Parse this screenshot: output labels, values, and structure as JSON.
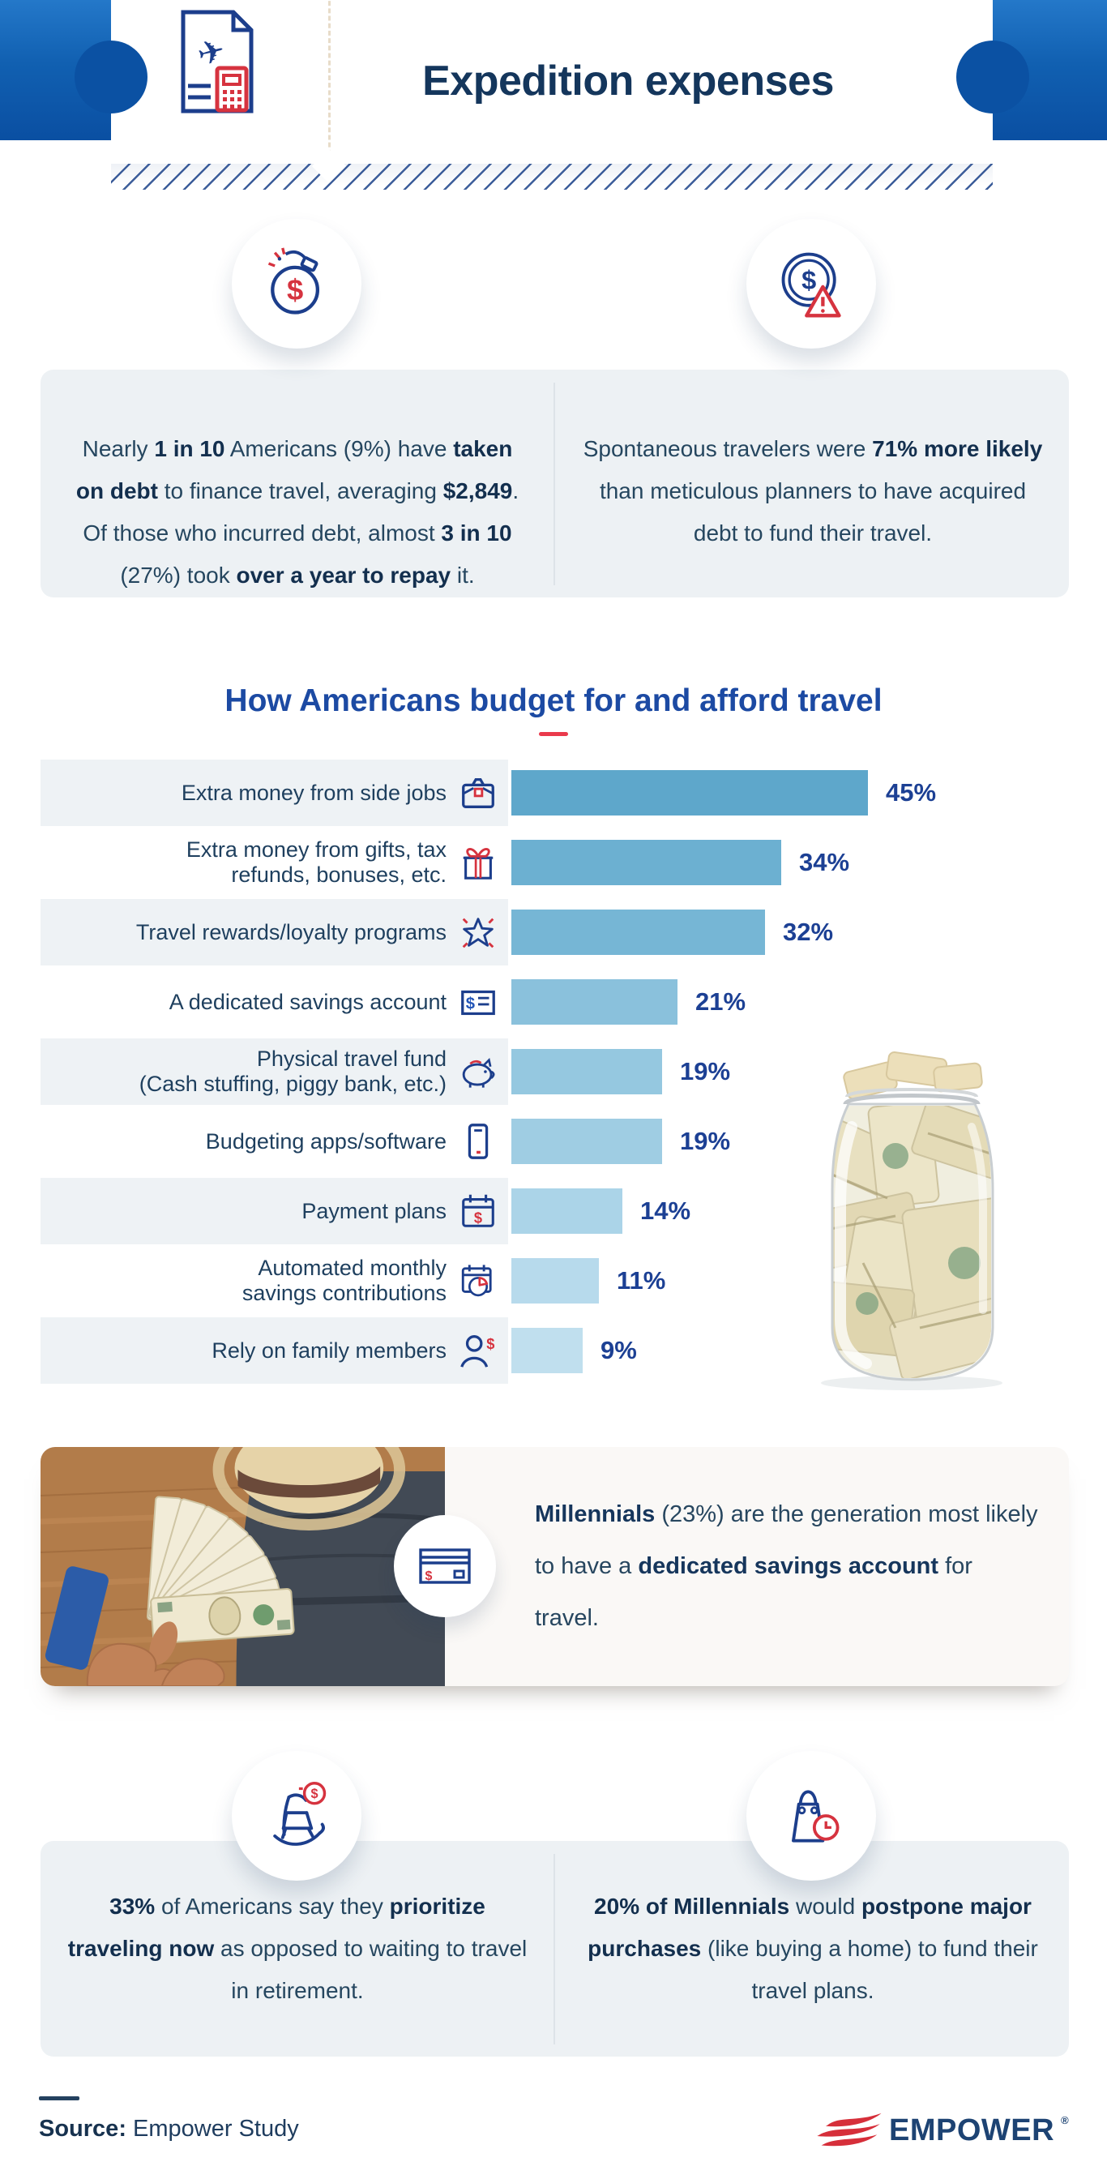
{
  "header": {
    "title": "Expedition expenses",
    "icon": "travel-invoice-icon"
  },
  "colors": {
    "hero_gradient_top": "#2478c9",
    "hero_gradient_bottom": "#0a4fa2",
    "heading_navy": "#14365c",
    "chart_title_blue": "#1c4aa3",
    "percent_blue": "#1c4094",
    "card_bg": "#edf1f4",
    "accent_red": "#ea3a4c"
  },
  "top_stats": [
    {
      "icon": "money-bomb-icon",
      "segments": [
        {
          "t": "Nearly ",
          "b": 0
        },
        {
          "t": "1 in 10",
          "b": 1
        },
        {
          "t": " Americans (9%) have ",
          "b": 0
        },
        {
          "t": "taken on debt",
          "b": 1
        },
        {
          "t": " to finance travel, averaging ",
          "b": 0
        },
        {
          "t": "$2,849",
          "b": 1
        },
        {
          "t": ". Of those who incurred debt, almost ",
          "b": 0
        },
        {
          "t": "3 in 10",
          "b": 1
        },
        {
          "t": " (27%) took ",
          "b": 0
        },
        {
          "t": "over a year to repay",
          "b": 1
        },
        {
          "t": " it.",
          "b": 0
        }
      ]
    },
    {
      "icon": "coin-alert-icon",
      "segments": [
        {
          "t": "Spontaneous travelers were ",
          "b": 0
        },
        {
          "t": "71% more likely",
          "b": 1
        },
        {
          "t": " than meticulous planners to have acquired debt to fund their travel.",
          "b": 0
        }
      ]
    }
  ],
  "chart_data": {
    "type": "bar",
    "orientation": "horizontal",
    "title": "How Americans budget for and afford travel",
    "unit": "%",
    "xlim": [
      0,
      45
    ],
    "grid": false,
    "categories": [
      "Extra money from side jobs",
      "Extra money from gifts, tax refunds, bonuses, etc.",
      "Travel rewards/loyalty programs",
      "A dedicated savings account",
      "Physical travel fund (Cash stuffing, piggy bank, etc.)",
      "Budgeting apps/software",
      "Payment plans",
      "Automated monthly savings contributions",
      "Rely on family members"
    ],
    "label_lines": [
      [
        "Extra money from side jobs"
      ],
      [
        "Extra money from gifts, tax",
        "refunds, bonuses, etc."
      ],
      [
        "Travel rewards/loyalty programs"
      ],
      [
        "A dedicated savings account"
      ],
      [
        "Physical travel fund",
        "(Cash stuffing, piggy bank, etc.)"
      ],
      [
        "Budgeting apps/software"
      ],
      [
        "Payment plans"
      ],
      [
        "Automated monthly",
        "savings contributions"
      ],
      [
        "Rely on family members"
      ]
    ],
    "values": [
      45,
      34,
      32,
      21,
      19,
      19,
      14,
      11,
      9
    ],
    "value_labels": [
      "45%",
      "34%",
      "32%",
      "21%",
      "19%",
      "19%",
      "14%",
      "11%",
      "9%"
    ],
    "icons": [
      "briefcase-icon",
      "gift-icon",
      "star-sparkle-icon",
      "savings-note-icon",
      "piggy-bank-icon",
      "phone-icon",
      "calendar-dollar-icon",
      "calendar-chart-icon",
      "person-dollar-icon"
    ],
    "bar_colors": [
      "#5ea7cb",
      "#6cb0d1",
      "#76b6d5",
      "#8ac1dc",
      "#95c8e0",
      "#9fcde3",
      "#abd4e8",
      "#b7daec",
      "#c0dfee"
    ]
  },
  "millennials": {
    "icon": "credit-card-icon",
    "segments": [
      {
        "t": "Millennials",
        "b": 1
      },
      {
        "t": " (23%) are the generation most likely to have a ",
        "b": 0
      },
      {
        "t": "dedicated savings account",
        "b": 1
      },
      {
        "t": " for travel.",
        "b": 0
      }
    ]
  },
  "bottom_stats": [
    {
      "icon": "rocking-chair-icon",
      "segments": [
        {
          "t": "33%",
          "b": 1
        },
        {
          "t": " of Americans say they ",
          "b": 0
        },
        {
          "t": "prioritize traveling now",
          "b": 1
        },
        {
          "t": " as opposed to waiting to travel in retirement.",
          "b": 0
        }
      ]
    },
    {
      "icon": "bag-clock-icon",
      "segments": [
        {
          "t": "20% of Millennials",
          "b": 1
        },
        {
          "t": " would ",
          "b": 0
        },
        {
          "t": "postpone major purchases",
          "b": 1
        },
        {
          "t": " (like buying a home) to fund their travel plans.",
          "b": 0
        }
      ]
    }
  ],
  "footer": {
    "source_segments": [
      {
        "t": "Source:",
        "b": 1
      },
      {
        "t": " Empower Study",
        "b": 0
      }
    ],
    "brand": "EMPOWER",
    "registered": "®"
  }
}
